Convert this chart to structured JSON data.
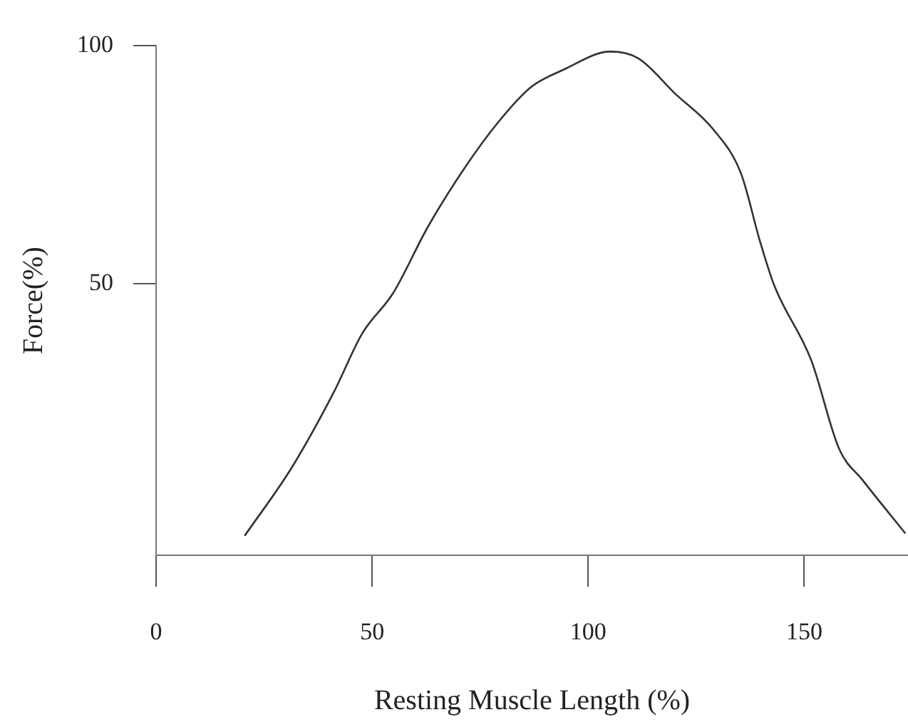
{
  "chart_data": {
    "type": "line",
    "xlabel": "Resting Muscle Length (%)",
    "ylabel": "Force(%)",
    "series": [
      {
        "color": "#333333",
        "x": [
          20.5,
          31.5,
          41.2,
          47.7,
          54.8,
          62.9,
          71.5,
          79.1,
          86.7,
          94.3,
          105.1,
          111.6,
          120.2,
          128.9,
          135.4,
          139.7,
          143,
          151.6,
          158.1,
          163.5,
          173.4
        ],
        "values": [
          -2.9,
          11.6,
          27.4,
          39.6,
          48,
          62,
          74.5,
          83.9,
          91.3,
          95,
          98.8,
          97.4,
          89.9,
          82.5,
          73.1,
          59.1,
          49.8,
          34,
          15.3,
          8.8,
          -2.4
        ]
      }
    ],
    "xlim": [
      0,
      174
    ],
    "xticks": [
      0,
      50,
      100,
      150
    ],
    "ylim": [
      -7,
      100
    ],
    "yticks": [
      50,
      100
    ],
    "grid": false,
    "legend": false,
    "marker": "none",
    "line_style": "solid"
  }
}
